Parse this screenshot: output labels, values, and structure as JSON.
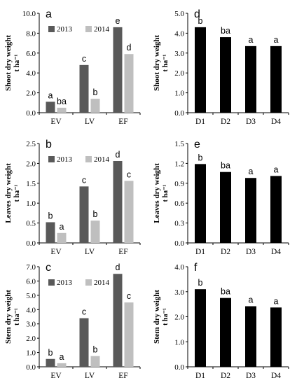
{
  "colors": {
    "y2013": "#595959",
    "y2014": "#bfbfbf",
    "single": "#000000",
    "axis": "#000000"
  },
  "chart_data": [
    {
      "panel": "a",
      "type": "bar",
      "ylabel": "Shoot dry weight",
      "yunit": "t ha⁻¹",
      "categories": [
        "EV",
        "LV",
        "EF"
      ],
      "series": [
        {
          "name": "2013",
          "values": [
            1.1,
            4.8,
            8.6
          ]
        },
        {
          "name": "2014",
          "values": [
            0.5,
            1.4,
            5.9
          ]
        }
      ],
      "labels": [
        [
          "a",
          "ba"
        ],
        [
          "c",
          "b"
        ],
        [
          "e",
          "d"
        ]
      ],
      "ylim": [
        0,
        10
      ],
      "yticks": [
        "0.0",
        "2.0",
        "4.0",
        "6.0",
        "8.0",
        "10.0"
      ]
    },
    {
      "panel": "b",
      "type": "bar",
      "ylabel": "Leaves dry weight",
      "yunit": "t ha⁻¹",
      "categories": [
        "EV",
        "LV",
        "EF"
      ],
      "series": [
        {
          "name": "2013",
          "values": [
            0.52,
            1.42,
            2.06
          ]
        },
        {
          "name": "2014",
          "values": [
            0.25,
            0.56,
            1.56
          ]
        }
      ],
      "labels": [
        [
          "b",
          "a"
        ],
        [
          "c",
          "b"
        ],
        [
          "d",
          "c"
        ]
      ],
      "ylim": [
        0,
        2.5
      ],
      "yticks": [
        "0.0",
        "0.5",
        "1.0",
        "1.5",
        "2.0",
        "2.5"
      ]
    },
    {
      "panel": "c",
      "type": "bar",
      "ylabel": "Stem dry weight",
      "yunit": "t ha⁻¹",
      "categories": [
        "EV",
        "LV",
        "EF"
      ],
      "series": [
        {
          "name": "2013",
          "values": [
            0.55,
            3.4,
            6.5
          ]
        },
        {
          "name": "2014",
          "values": [
            0.25,
            0.75,
            4.5
          ]
        }
      ],
      "labels": [
        [
          "b",
          "a"
        ],
        [
          "c",
          "b"
        ],
        [
          "d",
          "c"
        ]
      ],
      "ylim": [
        0,
        7
      ],
      "yticks": [
        "0.0",
        "1.0",
        "2.0",
        "3.0",
        "4.0",
        "5.0",
        "6.0",
        "7.0"
      ]
    },
    {
      "panel": "d",
      "type": "bar",
      "ylabel": "Shoot dry weight",
      "yunit": "t ha⁻¹",
      "categories": [
        "D1",
        "D2",
        "D3",
        "D4"
      ],
      "values": [
        4.3,
        3.8,
        3.35,
        3.35
      ],
      "labels": [
        "b",
        "ba",
        "a",
        "a"
      ],
      "ylim": [
        0,
        5
      ],
      "yticks": [
        "0.0",
        "1.0",
        "2.0",
        "3.0",
        "4.0",
        "5.0"
      ]
    },
    {
      "panel": "e",
      "type": "bar",
      "ylabel": "Leaves dry weight",
      "yunit": "t ha⁻¹",
      "categories": [
        "D1",
        "D2",
        "D3",
        "D4"
      ],
      "values": [
        1.19,
        1.07,
        0.98,
        1.01
      ],
      "labels": [
        "b",
        "ba",
        "a",
        "a"
      ],
      "ylim": [
        0,
        1.5
      ],
      "yticks": [
        "0.0",
        "0.3",
        "0.6",
        "0.9",
        "1.2",
        "1.5"
      ]
    },
    {
      "panel": "f",
      "type": "bar",
      "ylabel": "Stem dry weight",
      "yunit": "t ha⁻¹",
      "categories": [
        "D1",
        "D2",
        "D3",
        "D4"
      ],
      "values": [
        3.1,
        2.75,
        2.42,
        2.37
      ],
      "labels": [
        "b",
        "ba",
        "a",
        "a"
      ],
      "ylim": [
        0,
        4
      ],
      "yticks": [
        "0.0",
        "1.0",
        "2.0",
        "3.0",
        "4.0"
      ]
    }
  ]
}
